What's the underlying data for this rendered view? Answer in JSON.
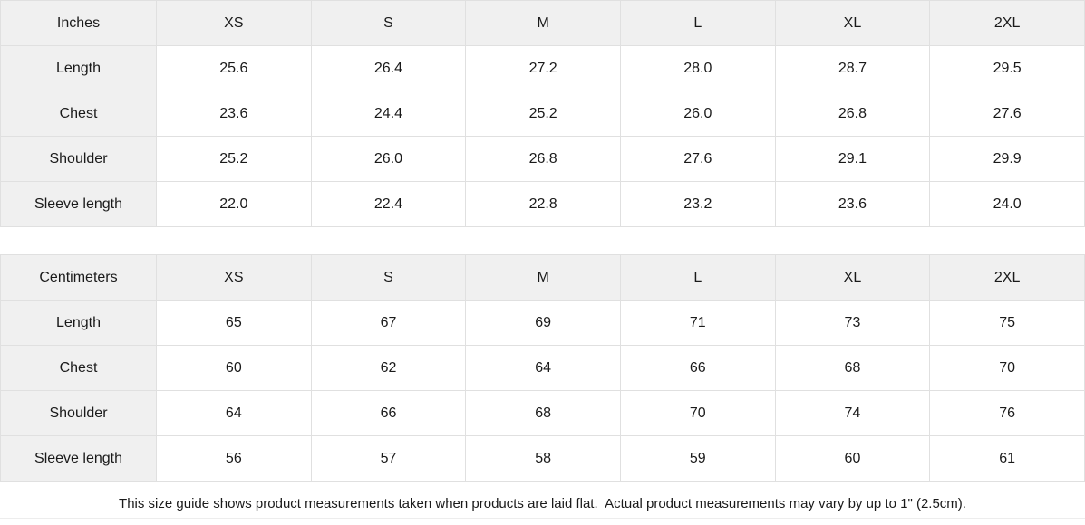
{
  "tables": [
    {
      "unit_label": "Inches",
      "sizes": [
        "XS",
        "S",
        "M",
        "L",
        "XL",
        "2XL"
      ],
      "rows": [
        {
          "label": "Length",
          "values": [
            "25.6",
            "26.4",
            "27.2",
            "28.0",
            "28.7",
            "29.5"
          ]
        },
        {
          "label": "Chest",
          "values": [
            "23.6",
            "24.4",
            "25.2",
            "26.0",
            "26.8",
            "27.6"
          ]
        },
        {
          "label": "Shoulder",
          "values": [
            "25.2",
            "26.0",
            "26.8",
            "27.6",
            "29.1",
            "29.9"
          ]
        },
        {
          "label": "Sleeve length",
          "values": [
            "22.0",
            "22.4",
            "22.8",
            "23.2",
            "23.6",
            "24.0"
          ]
        }
      ]
    },
    {
      "unit_label": "Centimeters",
      "sizes": [
        "XS",
        "S",
        "M",
        "L",
        "XL",
        "2XL"
      ],
      "rows": [
        {
          "label": "Length",
          "values": [
            "65",
            "67",
            "69",
            "71",
            "73",
            "75"
          ]
        },
        {
          "label": "Chest",
          "values": [
            "60",
            "62",
            "64",
            "66",
            "68",
            "70"
          ]
        },
        {
          "label": "Shoulder",
          "values": [
            "64",
            "66",
            "68",
            "70",
            "74",
            "76"
          ]
        },
        {
          "label": "Sleeve length",
          "values": [
            "56",
            "57",
            "58",
            "59",
            "60",
            "61"
          ]
        }
      ]
    }
  ],
  "footer": {
    "note": "This size guide shows product measurements taken when products are laid flat.  Actual product measurements may vary by up to 1\" (2.5cm)."
  },
  "colors": {
    "header_bg": "#f0f0f0",
    "border": "#e0e0e0",
    "text": "#1a1a1a"
  }
}
